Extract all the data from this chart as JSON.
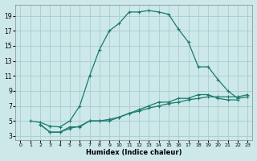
{
  "xlabel": "Humidex (Indice chaleur)",
  "bg_color": "#cce8e8",
  "grid_color": "#aacccc",
  "line_color": "#1a7a6e",
  "xlim": [
    -0.5,
    23.5
  ],
  "ylim": [
    2.5,
    20.5
  ],
  "xticks": [
    0,
    1,
    2,
    3,
    4,
    5,
    6,
    7,
    8,
    9,
    10,
    11,
    12,
    13,
    14,
    15,
    16,
    17,
    18,
    19,
    20,
    21,
    22,
    23
  ],
  "yticks": [
    3,
    5,
    7,
    9,
    11,
    13,
    15,
    17,
    19
  ],
  "line1_x": [
    1,
    2,
    3,
    4,
    5,
    6,
    7,
    8,
    9,
    10,
    11,
    12,
    13,
    14,
    15,
    16,
    17,
    18,
    19,
    20,
    21,
    22,
    23
  ],
  "line1_y": [
    5.0,
    4.8,
    4.3,
    4.2,
    5.0,
    7.0,
    11.0,
    14.5,
    17.0,
    18.0,
    19.5,
    19.5,
    19.7,
    19.5,
    19.2,
    17.2,
    15.5,
    12.2,
    12.2,
    10.5,
    9.0,
    8.0,
    8.2
  ],
  "line2_x": [
    2,
    3,
    4,
    5,
    6,
    7,
    8,
    9,
    10,
    11,
    12,
    13,
    14,
    15,
    16,
    17,
    18,
    19,
    20,
    21,
    22
  ],
  "line2_y": [
    4.5,
    3.5,
    3.5,
    4.2,
    4.2,
    5.0,
    5.0,
    5.0,
    5.5,
    6.0,
    6.5,
    7.0,
    7.5,
    7.5,
    8.0,
    8.0,
    8.5,
    8.5,
    8.0,
    7.8,
    7.8
  ],
  "line3_x": [
    2,
    3,
    4,
    5,
    6,
    7,
    8,
    9,
    10,
    11,
    12,
    13,
    14,
    15,
    16,
    17,
    18,
    19,
    20,
    21,
    22,
    23
  ],
  "line3_y": [
    4.5,
    3.5,
    3.5,
    4.0,
    4.3,
    5.0,
    5.0,
    5.2,
    5.5,
    6.0,
    6.3,
    6.7,
    7.0,
    7.3,
    7.5,
    7.8,
    8.0,
    8.2,
    8.2,
    8.2,
    8.2,
    8.5
  ]
}
